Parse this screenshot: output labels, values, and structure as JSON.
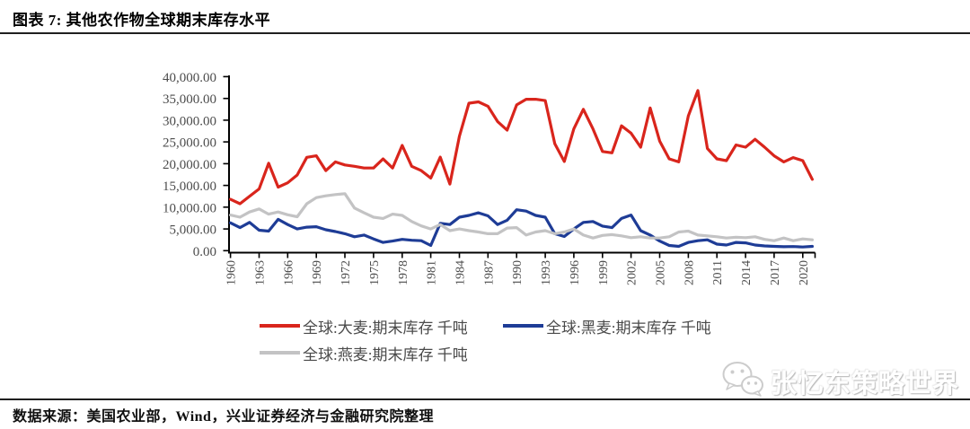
{
  "header": {
    "title": "图表 7: 其他农作物全球期末库存水平"
  },
  "footer": {
    "source_text": "数据来源：美国农业部，Wind，兴业证券经济与金融研究院整理"
  },
  "watermark": {
    "icon": "wechat-icon",
    "text": "张忆东策略世界"
  },
  "colors": {
    "barley_red": "#d9251c",
    "rye_blue": "#1e3c96",
    "oats_gray": "#c3c3c4",
    "axis": "#000000",
    "tick_label": "#4c4c4c",
    "rule": "#1f1f1f"
  },
  "chart_data": {
    "type": "line",
    "title": "其他农作物全球期末库存水平",
    "xlabel": "",
    "ylabel": "",
    "unit": "千吨",
    "grid": false,
    "legend_position": "bottom",
    "ylim": [
      0,
      40000
    ],
    "y_ticks": [
      {
        "value": 0,
        "label": "0.00"
      },
      {
        "value": 5000,
        "label": "5,000.00"
      },
      {
        "value": 10000,
        "label": "10,000.00"
      },
      {
        "value": 15000,
        "label": "15,000.00"
      },
      {
        "value": 20000,
        "label": "20,000.00"
      },
      {
        "value": 25000,
        "label": "25,000.00"
      },
      {
        "value": 30000,
        "label": "30,000.00"
      },
      {
        "value": 35000,
        "label": "35,000.00"
      },
      {
        "value": 40000,
        "label": "40,000.00"
      }
    ],
    "x_tick_labels": [
      "1960",
      "1963",
      "1966",
      "1969",
      "1972",
      "1975",
      "1978",
      "1981",
      "1984",
      "1987",
      "1990",
      "1993",
      "1996",
      "1999",
      "2002",
      "2005",
      "2008",
      "2011",
      "2014",
      "2017",
      "2020"
    ],
    "x": [
      1960,
      1961,
      1962,
      1963,
      1964,
      1965,
      1966,
      1967,
      1968,
      1969,
      1970,
      1971,
      1972,
      1973,
      1974,
      1975,
      1976,
      1977,
      1978,
      1979,
      1980,
      1981,
      1982,
      1983,
      1984,
      1985,
      1986,
      1987,
      1988,
      1989,
      1990,
      1991,
      1992,
      1993,
      1994,
      1995,
      1996,
      1997,
      1998,
      1999,
      2000,
      2001,
      2002,
      2003,
      2004,
      2005,
      2006,
      2007,
      2008,
      2009,
      2010,
      2011,
      2012,
      2013,
      2014,
      2015,
      2016,
      2017,
      2018,
      2019,
      2020,
      2021
    ],
    "series": [
      {
        "name": "全球:大麦:期末库存 千吨",
        "color": "#d9251c",
        "values": [
          11800,
          10800,
          12500,
          14200,
          20100,
          14600,
          15600,
          17400,
          21450,
          21800,
          18400,
          20400,
          19700,
          19400,
          19000,
          19000,
          21100,
          19000,
          24200,
          19400,
          18400,
          16700,
          21500,
          15300,
          26300,
          33900,
          34200,
          33200,
          29700,
          27700,
          33500,
          34800,
          34800,
          34500,
          24600,
          20500,
          28000,
          32500,
          28000,
          22800,
          22500,
          28700,
          27000,
          23800,
          32800,
          25200,
          21100,
          20400,
          31000,
          36800,
          23500,
          21100,
          20700,
          24300,
          23800,
          25600,
          23800,
          21800,
          20400,
          21400,
          20700,
          16400
        ]
      },
      {
        "name": "全球:黑麦:期末库存 千吨",
        "color": "#1e3c96",
        "values": [
          6400,
          5300,
          6500,
          4700,
          4500,
          7200,
          6000,
          5000,
          5400,
          5500,
          4800,
          4400,
          3900,
          3200,
          3600,
          2700,
          1900,
          2200,
          2600,
          2400,
          2300,
          1200,
          6300,
          6000,
          7700,
          8100,
          8700,
          8000,
          6000,
          7000,
          9400,
          9100,
          8100,
          7700,
          3900,
          3250,
          5000,
          6500,
          6700,
          5650,
          5300,
          7400,
          8200,
          4600,
          3600,
          2200,
          1200,
          1000,
          1900,
          2300,
          2500,
          1500,
          1300,
          1900,
          1800,
          1300,
          1100,
          1000,
          900,
          950,
          850,
          1000
        ]
      },
      {
        "name": "全球:燕麦:期末库存 千吨",
        "color": "#c3c3c4",
        "values": [
          8200,
          7700,
          8900,
          9600,
          8400,
          8900,
          8250,
          7800,
          10800,
          12200,
          12600,
          12900,
          13100,
          9800,
          8700,
          7700,
          7400,
          8400,
          8100,
          6700,
          5700,
          5000,
          6000,
          4600,
          5000,
          4600,
          4300,
          3900,
          3900,
          5200,
          5300,
          3600,
          4300,
          4600,
          3900,
          4300,
          5000,
          3600,
          2900,
          3500,
          3700,
          3400,
          3000,
          3200,
          2900,
          2900,
          3200,
          4300,
          4500,
          3600,
          3400,
          3200,
          2900,
          3100,
          3000,
          3200,
          2600,
          2300,
          2900,
          2300,
          2700,
          2500
        ]
      }
    ]
  }
}
